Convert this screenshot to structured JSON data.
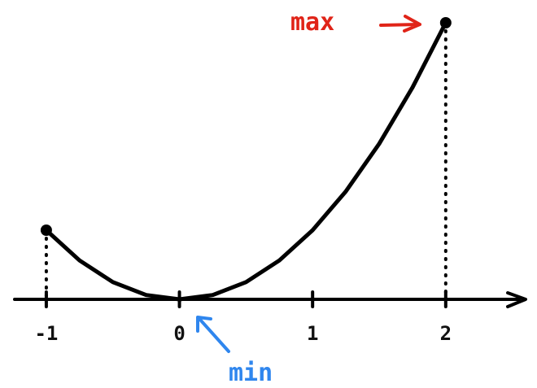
{
  "chart_data": {
    "type": "line",
    "x_ticks": [
      "-1",
      "0",
      "1",
      "2"
    ],
    "x_tick_values": [
      -1,
      0,
      1,
      2
    ],
    "xlim": [
      -1.25,
      2.6
    ],
    "ylim": [
      0,
      4
    ],
    "series": [
      {
        "x": [
          -1,
          -0.75,
          -0.5,
          -0.25,
          0,
          0.25,
          0.5,
          0.75,
          1,
          1.25,
          1.5,
          1.75,
          2
        ],
        "y": [
          1,
          0.5625,
          0.25,
          0.0625,
          0,
          0.0625,
          0.25,
          0.5625,
          1,
          1.5625,
          2.25,
          3.0625,
          4
        ]
      }
    ],
    "endpoints": [
      {
        "x": -1,
        "y": 1
      },
      {
        "x": 2,
        "y": 4
      }
    ],
    "annotations": [
      {
        "text": "max",
        "x": 2,
        "y": 4,
        "color": "#e02418"
      },
      {
        "text": "min",
        "x": 0,
        "y": 0,
        "color": "#2f86ee"
      }
    ],
    "grid": false,
    "colors": {
      "curve": "#000000",
      "max": "#e02418",
      "min": "#2f86ee"
    }
  }
}
